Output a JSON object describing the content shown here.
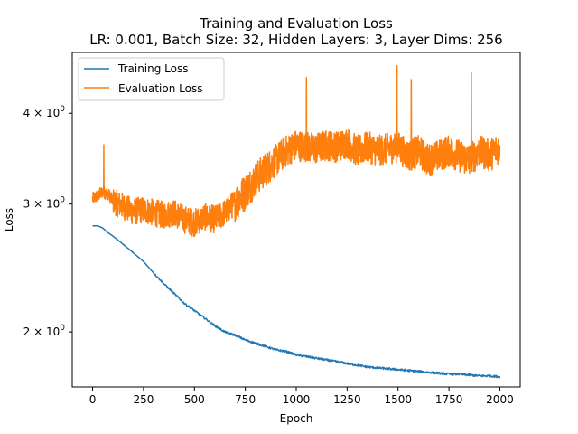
{
  "chart_data": {
    "type": "line",
    "title": "Training and Evaluation Loss",
    "subtitle": "LR: 0.001, Batch Size: 32, Hidden Layers: 3, Layer Dims: 256",
    "xlabel": "Epoch",
    "ylabel": "Loss",
    "xlim": [
      -100,
      2100
    ],
    "ylim": [
      1.68,
      4.85
    ],
    "yscale": "log",
    "grid": false,
    "legend_position": "top-left",
    "x_ticks": [
      0,
      250,
      500,
      750,
      1000,
      1250,
      1500,
      1750,
      2000
    ],
    "x_tick_labels": [
      "0",
      "250",
      "500",
      "750",
      "1000",
      "1250",
      "1500",
      "1750",
      "2000"
    ],
    "y_ticks": [
      2,
      3,
      4
    ],
    "y_tick_labels": [
      {
        "base": "2 × 10",
        "exp": "0"
      },
      {
        "base": "3 × 10",
        "exp": "0"
      },
      {
        "base": "4 × 10",
        "exp": "0"
      }
    ],
    "series": [
      {
        "name": "Training Loss",
        "color": "#1f77b4",
        "x": [
          0,
          25,
          50,
          75,
          100,
          150,
          200,
          250,
          300,
          350,
          400,
          450,
          500,
          550,
          600,
          650,
          700,
          750,
          800,
          850,
          900,
          950,
          1000,
          1050,
          1100,
          1150,
          1200,
          1250,
          1300,
          1350,
          1400,
          1450,
          1500,
          1550,
          1600,
          1650,
          1700,
          1750,
          1800,
          1850,
          1900,
          1950,
          2000
        ],
        "y": [
          2.8,
          2.8,
          2.78,
          2.74,
          2.71,
          2.64,
          2.57,
          2.5,
          2.41,
          2.33,
          2.26,
          2.19,
          2.14,
          2.09,
          2.04,
          2.0,
          1.98,
          1.95,
          1.93,
          1.91,
          1.89,
          1.88,
          1.86,
          1.85,
          1.84,
          1.83,
          1.82,
          1.81,
          1.8,
          1.79,
          1.785,
          1.78,
          1.775,
          1.77,
          1.765,
          1.76,
          1.755,
          1.75,
          1.75,
          1.745,
          1.74,
          1.74,
          1.735
        ]
      },
      {
        "name": "Evaluation Loss",
        "color": "#ff7f0e",
        "x": [
          0,
          25,
          50,
          75,
          100,
          150,
          200,
          250,
          300,
          350,
          400,
          450,
          500,
          550,
          600,
          650,
          700,
          750,
          800,
          850,
          900,
          950,
          1000,
          1050,
          1100,
          1150,
          1200,
          1250,
          1300,
          1350,
          1400,
          1450,
          1500,
          1550,
          1600,
          1650,
          1700,
          1750,
          1800,
          1850,
          1900,
          1950,
          2000
        ],
        "y": [
          3.05,
          3.08,
          3.12,
          3.1,
          3.03,
          2.98,
          2.93,
          2.95,
          2.92,
          2.9,
          2.92,
          2.86,
          2.83,
          2.88,
          2.86,
          2.92,
          3.02,
          3.12,
          3.25,
          3.35,
          3.45,
          3.55,
          3.62,
          3.6,
          3.58,
          3.62,
          3.6,
          3.65,
          3.55,
          3.6,
          3.55,
          3.58,
          3.6,
          3.5,
          3.55,
          3.45,
          3.5,
          3.55,
          3.5,
          3.45,
          3.55,
          3.5,
          3.6
        ],
        "noise_amplitude": 0.18,
        "spikes": [
          {
            "x": 55,
            "y": 3.62
          },
          {
            "x": 1495,
            "y": 4.65
          },
          {
            "x": 1860,
            "y": 4.55
          },
          {
            "x": 1050,
            "y": 4.48
          },
          {
            "x": 1565,
            "y": 4.45
          }
        ]
      }
    ]
  }
}
